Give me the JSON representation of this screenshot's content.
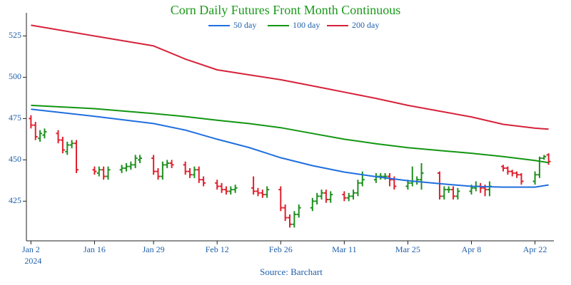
{
  "chart_data": {
    "type": "ohlc",
    "title": "Corn Daily Futures Front Month Continuous",
    "source": "Source: Barchart",
    "x_year_label": "2024",
    "x": [
      "2024-01-02",
      "2024-01-03",
      "2024-01-04",
      "2024-01-05",
      "2024-01-08",
      "2024-01-09",
      "2024-01-10",
      "2024-01-11",
      "2024-01-12",
      "2024-01-16",
      "2024-01-17",
      "2024-01-18",
      "2024-01-19",
      "2024-01-22",
      "2024-01-23",
      "2024-01-24",
      "2024-01-25",
      "2024-01-26",
      "2024-01-29",
      "2024-01-30",
      "2024-01-31",
      "2024-02-01",
      "2024-02-02",
      "2024-02-05",
      "2024-02-06",
      "2024-02-07",
      "2024-02-08",
      "2024-02-09",
      "2024-02-12",
      "2024-02-13",
      "2024-02-14",
      "2024-02-15",
      "2024-02-16",
      "2024-02-20",
      "2024-02-21",
      "2024-02-22",
      "2024-02-23",
      "2024-02-26",
      "2024-02-27",
      "2024-02-28",
      "2024-02-29",
      "2024-03-01",
      "2024-03-04",
      "2024-03-05",
      "2024-03-06",
      "2024-03-07",
      "2024-03-08",
      "2024-03-11",
      "2024-03-12",
      "2024-03-13",
      "2024-03-14",
      "2024-03-15",
      "2024-03-18",
      "2024-03-19",
      "2024-03-20",
      "2024-03-21",
      "2024-03-22",
      "2024-03-25",
      "2024-03-26",
      "2024-03-27",
      "2024-03-28",
      "2024-04-01",
      "2024-04-02",
      "2024-04-03",
      "2024-04-04",
      "2024-04-05",
      "2024-04-08",
      "2024-04-09",
      "2024-04-10",
      "2024-04-11",
      "2024-04-12",
      "2024-04-15",
      "2024-04-16",
      "2024-04-17",
      "2024-04-18",
      "2024-04-19",
      "2024-04-22",
      "2024-04-23",
      "2024-04-24",
      "2024-04-25"
    ],
    "open": [
      475,
      471,
      463,
      465,
      466,
      462,
      455,
      459,
      460,
      444,
      442,
      444,
      440,
      444,
      445,
      446,
      447,
      450,
      451,
      443,
      440,
      447,
      448,
      447,
      443,
      441,
      444,
      438,
      436,
      434,
      432,
      431,
      432,
      433,
      431,
      430,
      429,
      432,
      421,
      415,
      411,
      417,
      421,
      425,
      428,
      430,
      426,
      429,
      427,
      428,
      430,
      436,
      438,
      440,
      440,
      440,
      438,
      434,
      436,
      437,
      438,
      442,
      428,
      432,
      432,
      428,
      431,
      433,
      434,
      433,
      432,
      446,
      445,
      443,
      442,
      441,
      437,
      441,
      451,
      453
    ],
    "high": [
      477,
      473,
      468,
      469,
      468,
      464,
      461,
      462,
      462,
      446,
      446,
      446,
      446,
      447,
      448,
      449,
      453,
      453,
      453,
      445,
      449,
      450,
      450,
      449,
      445,
      446,
      446,
      440,
      438,
      436,
      434,
      434,
      435,
      440,
      433,
      432,
      434,
      434,
      423,
      417,
      419,
      423,
      427,
      430,
      432,
      432,
      431,
      431,
      430,
      432,
      438,
      443,
      442,
      442,
      442,
      442,
      440,
      438,
      446,
      440,
      448,
      443,
      434,
      434,
      434,
      433,
      435,
      437,
      436,
      435,
      437,
      447,
      446,
      444,
      443,
      442,
      443,
      452,
      453,
      454
    ],
    "low": [
      469,
      462,
      461,
      463,
      460,
      454,
      453,
      457,
      442,
      441,
      440,
      438,
      438,
      442,
      443,
      444,
      445,
      448,
      441,
      438,
      438,
      445,
      445,
      441,
      439,
      439,
      436,
      434,
      432,
      430,
      429,
      429,
      430,
      429,
      428,
      427,
      427,
      419,
      413,
      409,
      409,
      415,
      419,
      423,
      426,
      424,
      424,
      425,
      425,
      426,
      428,
      434,
      436,
      438,
      438,
      434,
      432,
      432,
      434,
      435,
      432,
      426,
      426,
      430,
      426,
      426,
      429,
      431,
      430,
      428,
      428,
      443,
      441,
      440,
      439,
      435,
      435,
      439,
      450,
      447
    ],
    "close": [
      471,
      464,
      466,
      467,
      462,
      456,
      459,
      460,
      444,
      443,
      444,
      440,
      444,
      445,
      446,
      447,
      451,
      451,
      443,
      440,
      447,
      448,
      447,
      443,
      441,
      444,
      438,
      436,
      434,
      432,
      431,
      432,
      433,
      431,
      430,
      429,
      432,
      421,
      415,
      411,
      417,
      421,
      425,
      428,
      430,
      426,
      429,
      427,
      428,
      430,
      436,
      438,
      440,
      440,
      440,
      438,
      434,
      436,
      437,
      438,
      442,
      428,
      432,
      432,
      428,
      431,
      433,
      434,
      433,
      432,
      434,
      445,
      443,
      442,
      441,
      437,
      441,
      451,
      452,
      449
    ],
    "up_color": "#1f8f1f",
    "down_color": "#e0202e",
    "series": [
      {
        "name": "50 day",
        "color": "#1f6fdf",
        "x": [
          "2024-01-02",
          "2024-01-16",
          "2024-01-29",
          "2024-02-05",
          "2024-02-12",
          "2024-02-19",
          "2024-02-26",
          "2024-03-04",
          "2024-03-11",
          "2024-03-18",
          "2024-03-25",
          "2024-04-01",
          "2024-04-08",
          "2024-04-15",
          "2024-04-22",
          "2024-04-25"
        ],
        "values": [
          480.7,
          476.4,
          472,
          468,
          462.5,
          457.5,
          451.3,
          446.5,
          442.6,
          439.8,
          437.4,
          435.6,
          434,
          433.5,
          433.5,
          434.8
        ]
      },
      {
        "name": "100 day",
        "color": "#129612",
        "x": [
          "2024-01-02",
          "2024-01-16",
          "2024-01-29",
          "2024-02-05",
          "2024-02-12",
          "2024-02-19",
          "2024-02-26",
          "2024-03-04",
          "2024-03-11",
          "2024-03-18",
          "2024-03-25",
          "2024-04-01",
          "2024-04-08",
          "2024-04-15",
          "2024-04-22",
          "2024-04-25"
        ],
        "values": [
          483,
          481,
          478,
          476.2,
          474,
          472,
          469.5,
          466,
          462.5,
          459.8,
          457.4,
          455.7,
          454,
          452,
          449.6,
          448.3
        ]
      },
      {
        "name": "200 day",
        "color": "#d6223a",
        "x": [
          "2024-01-02",
          "2024-01-16",
          "2024-01-29",
          "2024-02-05",
          "2024-02-12",
          "2024-02-19",
          "2024-02-26",
          "2024-03-04",
          "2024-03-11",
          "2024-03-18",
          "2024-03-25",
          "2024-04-01",
          "2024-04-08",
          "2024-04-15",
          "2024-04-22",
          "2024-04-25"
        ],
        "values": [
          531.5,
          525,
          519,
          511,
          504.5,
          501.5,
          498.5,
          494.8,
          491,
          487.2,
          483,
          479.5,
          476,
          471.5,
          469.2,
          468.6
        ]
      }
    ],
    "legend": "top",
    "xlim": [
      "2024-01-01",
      "2024-04-26"
    ],
    "xticks": [
      {
        "value": "2024-01-02",
        "label": "Jan 2"
      },
      {
        "value": "2024-01-16",
        "label": "Jan 16"
      },
      {
        "value": "2024-01-29",
        "label": "Jan 29"
      },
      {
        "value": "2024-02-12",
        "label": "Feb 12"
      },
      {
        "value": "2024-02-26",
        "label": "Feb 26"
      },
      {
        "value": "2024-03-11",
        "label": "Mar 11"
      },
      {
        "value": "2024-03-25",
        "label": "Mar 25"
      },
      {
        "value": "2024-04-08",
        "label": "Apr 8"
      },
      {
        "value": "2024-04-22",
        "label": "Apr 22"
      }
    ],
    "ylim": [
      401,
      539
    ],
    "yticks": [
      425,
      450,
      475,
      500,
      525
    ],
    "grid": false
  }
}
